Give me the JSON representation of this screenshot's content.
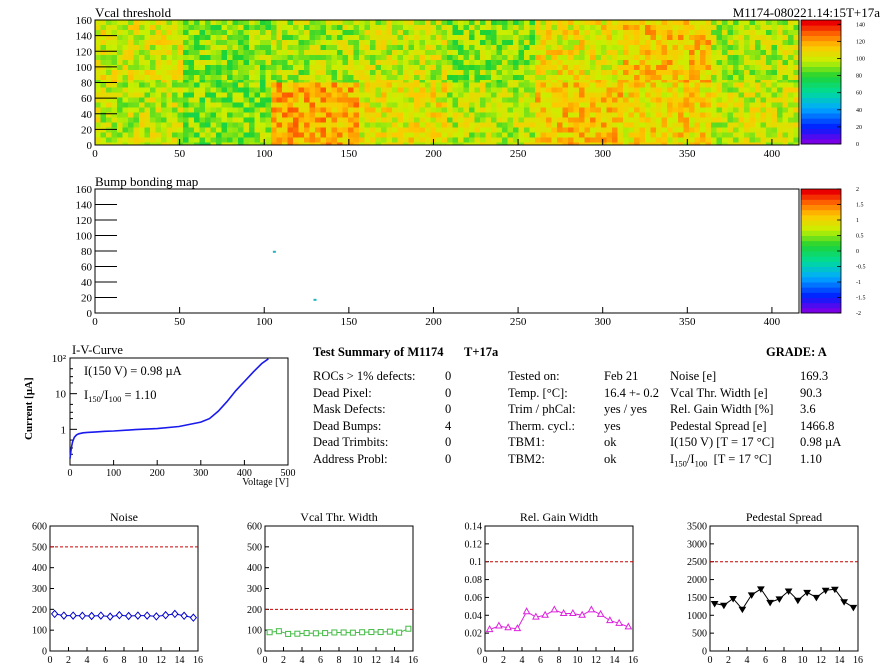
{
  "module_id": "M1174-080221.14:15T+17a",
  "heatmaps": {
    "vcal": {
      "title": "Vcal threshold"
    },
    "bump": {
      "title": "Bump bonding map"
    }
  },
  "iv": {
    "title": "I-V-Curve",
    "ylabel": "Current [µA]",
    "xlabel": "Voltage [V]",
    "ann1": "I(150 V) = 0.98 µA",
    "ann2_pre": "I",
    "ann2_sub1": "150",
    "ann2_mid": "/I",
    "ann2_sub2": "100",
    "ann2_post": " =  1.10"
  },
  "summary": {
    "title": "Test Summary of M1174",
    "temp_tag": "T+17a",
    "grade": "GRADE:  A",
    "left": [
      {
        "label": "ROCs > 1% defects:",
        "value": "0"
      },
      {
        "label": "Dead Pixel:",
        "value": "0"
      },
      {
        "label": "Mask Defects:",
        "value": "0"
      },
      {
        "label": "Dead Bumps:",
        "value": "4"
      },
      {
        "label": "Dead Trimbits:",
        "value": "0"
      },
      {
        "label": "Address Probl:",
        "value": "0"
      }
    ],
    "middle": [
      {
        "label": "Tested on:",
        "value": "Feb 21"
      },
      {
        "label": "Temp. [°C]:",
        "value": "16.4 +- 0.2"
      },
      {
        "label": "Trim / phCal:",
        "value": "yes / yes"
      },
      {
        "label": "Therm. cycl.:",
        "value": "yes"
      },
      {
        "label": "TBM1:",
        "value": "ok"
      },
      {
        "label": "TBM2:",
        "value": "ok"
      }
    ],
    "right": [
      {
        "label": "Noise [e]",
        "value": "169.3"
      },
      {
        "label": "Vcal Thr. Width [e]",
        "value": "90.3"
      },
      {
        "label": "Rel. Gain Width [%]",
        "value": "3.6"
      },
      {
        "label": "Pedestal Spread [e]",
        "value": "1466.8"
      },
      {
        "label": "I(150 V) [T = 17 °C]",
        "value": "0.98 µA"
      },
      {
        "label_pre": "I",
        "label_sub1": "150",
        "label_mid": "/I",
        "label_sub2": "100",
        "label_post": "  [T = 17 °C]",
        "value": "1.10"
      }
    ]
  },
  "chart_data": [
    {
      "type": "heatmap",
      "title": "Vcal threshold",
      "xlim": [
        0,
        416
      ],
      "ylim": [
        0,
        160
      ],
      "xticks": [
        0,
        50,
        100,
        150,
        200,
        250,
        300,
        350,
        400
      ],
      "yticks": [
        0,
        20,
        40,
        60,
        80,
        100,
        120,
        140,
        160
      ],
      "colorbar": {
        "min": 0,
        "max": 145,
        "ticks": [
          0,
          20,
          40,
          60,
          80,
          100,
          120,
          140
        ]
      },
      "roc_mean_thresholds": {
        "top_row": [
          103,
          92,
          96,
          100,
          92,
          107,
          114,
          97
        ],
        "bottom_row": [
          99,
          90,
          119,
          106,
          98,
          114,
          110,
          101
        ]
      }
    },
    {
      "type": "heatmap",
      "title": "Bump bonding map",
      "xlim": [
        0,
        416
      ],
      "ylim": [
        0,
        160
      ],
      "xticks": [
        0,
        50,
        100,
        150,
        200,
        250,
        300,
        350,
        400
      ],
      "yticks": [
        0,
        20,
        40,
        60,
        80,
        100,
        120,
        140,
        160
      ],
      "colorbar": {
        "min": -2,
        "max": 2,
        "ticks": [
          -2,
          -1.5,
          -1,
          -0.5,
          0,
          0.5,
          1,
          1.5,
          2
        ]
      },
      "marks": [
        {
          "x": 106,
          "y": 79
        },
        {
          "x": 130,
          "y": 17
        }
      ]
    },
    {
      "type": "line",
      "title": "I-V-Curve",
      "xlabel": "Voltage [V]",
      "ylabel": "Current [µA]",
      "xlim": [
        0,
        500
      ],
      "ylim": [
        0.1,
        100
      ],
      "yscale": "log",
      "xticks": [
        0,
        100,
        200,
        300,
        400,
        500
      ],
      "ytick_labels": [
        "10²",
        "10",
        "1"
      ],
      "x": [
        0,
        3,
        6,
        10,
        15,
        20,
        30,
        40,
        60,
        80,
        100,
        150,
        200,
        250,
        300,
        320,
        340,
        360,
        380,
        400,
        420,
        440,
        455
      ],
      "y": [
        0.15,
        0.3,
        0.45,
        0.6,
        0.7,
        0.75,
        0.8,
        0.82,
        0.85,
        0.88,
        0.9,
        0.98,
        1.05,
        1.2,
        1.6,
        2.0,
        3.2,
        6.0,
        12,
        22,
        40,
        70,
        95
      ]
    },
    {
      "type": "line",
      "title": "Noise",
      "xlim": [
        0,
        16
      ],
      "ylim": [
        0,
        600
      ],
      "xticks": [
        0,
        2,
        4,
        6,
        8,
        10,
        12,
        14,
        16
      ],
      "yticks": [
        0,
        100,
        200,
        300,
        400,
        500,
        600
      ],
      "threshold": 500,
      "x": [
        0,
        1,
        2,
        3,
        4,
        5,
        6,
        7,
        8,
        9,
        10,
        11,
        12,
        13,
        14,
        15
      ],
      "y": [
        178,
        170,
        170,
        169,
        168,
        170,
        165,
        172,
        168,
        170,
        170,
        166,
        172,
        178,
        169,
        160
      ]
    },
    {
      "type": "line",
      "title": "Vcal Thr. Width",
      "xlim": [
        0,
        16
      ],
      "ylim": [
        0,
        600
      ],
      "xticks": [
        0,
        2,
        4,
        6,
        8,
        10,
        12,
        14,
        16
      ],
      "yticks": [
        0,
        100,
        200,
        300,
        400,
        500,
        600
      ],
      "threshold": 200,
      "x": [
        0,
        1,
        2,
        3,
        4,
        5,
        6,
        7,
        8,
        9,
        10,
        11,
        12,
        13,
        14,
        15
      ],
      "y": [
        90,
        95,
        82,
        83,
        86,
        85,
        86,
        89,
        89,
        88,
        90,
        91,
        91,
        93,
        88,
        107
      ]
    },
    {
      "type": "line",
      "title": "Rel. Gain Width",
      "xlim": [
        0,
        16
      ],
      "ylim": [
        0,
        0.14
      ],
      "xticks": [
        0,
        2,
        4,
        6,
        8,
        10,
        12,
        14,
        16
      ],
      "yticks": [
        0,
        0.02,
        0.04,
        0.06,
        0.08,
        0.1,
        0.12,
        0.14
      ],
      "threshold": 0.1,
      "x": [
        0,
        1,
        2,
        3,
        4,
        5,
        6,
        7,
        8,
        9,
        10,
        11,
        12,
        13,
        14,
        15
      ],
      "y": [
        0.024,
        0.028,
        0.026,
        0.025,
        0.044,
        0.038,
        0.04,
        0.046,
        0.042,
        0.042,
        0.04,
        0.046,
        0.041,
        0.034,
        0.031,
        0.027
      ]
    },
    {
      "type": "line",
      "title": "Pedestal Spread",
      "xlim": [
        0,
        16
      ],
      "ylim": [
        0,
        3500
      ],
      "xticks": [
        0,
        2,
        4,
        6,
        8,
        10,
        12,
        14,
        16
      ],
      "yticks": [
        0,
        500,
        1000,
        1500,
        2000,
        2500,
        3000,
        3500
      ],
      "threshold": 2500,
      "x": [
        0,
        1,
        2,
        3,
        4,
        5,
        6,
        7,
        8,
        9,
        10,
        11,
        12,
        13,
        14,
        15
      ],
      "y": [
        1330,
        1280,
        1470,
        1170,
        1570,
        1740,
        1360,
        1460,
        1680,
        1420,
        1640,
        1500,
        1700,
        1730,
        1380,
        1220
      ]
    }
  ],
  "colors": {
    "iv_line": "#1a1aee",
    "noise": "#0000cc",
    "vcal": "#44bb44",
    "gain": "#dd22dd",
    "pedestal": "#000000",
    "threshold": "#cc0000"
  }
}
